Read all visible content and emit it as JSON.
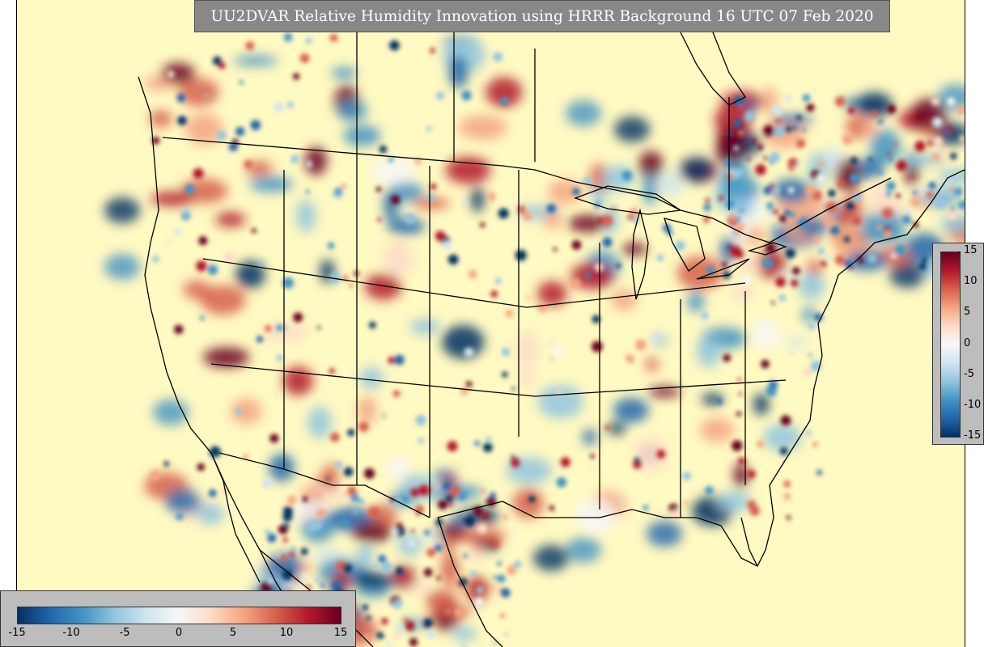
{
  "title": "UU2DVAR Relative Humidity Innovation using HRRR Background 16 UTC 07 Feb 2020",
  "colorbar": {
    "min": -15,
    "max": 15,
    "colors": [
      "#053061",
      "#2166ac",
      "#4393c3",
      "#92c5de",
      "#d1e5f0",
      "#f7f7f7",
      "#fddbc7",
      "#f4a582",
      "#d6604d",
      "#b2182b",
      "#67001f"
    ],
    "vertical_ticks": [
      "15",
      "10",
      "5",
      "0",
      "-5",
      "-10",
      "-15"
    ],
    "horizontal_ticks": [
      "-15",
      "-10",
      "-5",
      "0",
      "5",
      "10",
      "15"
    ]
  },
  "map": {
    "background_color": "#fff9c2",
    "border_color": "#000000"
  }
}
